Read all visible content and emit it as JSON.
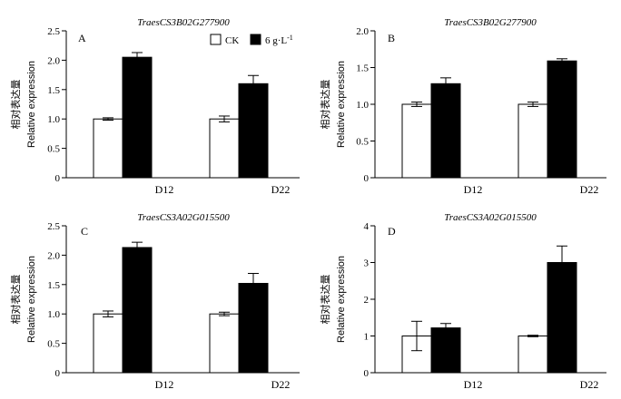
{
  "figure": {
    "ylabel_cn": "相对表达量",
    "ylabel_en": "Relative expression",
    "legend": {
      "ck": "CK",
      "treat_base": "6 g·L",
      "treat_sup": "-1"
    },
    "colors": {
      "ck": "#ffffff",
      "treat": "#000000",
      "axis": "#000000"
    }
  },
  "chart_data": [
    {
      "type": "bar",
      "panel": "A",
      "title": "TraesCS3B02G277900",
      "categories": [
        "D12",
        "D22"
      ],
      "ylim": [
        0,
        2.5
      ],
      "yticks": [
        "0",
        "0.5",
        "1.0",
        "1.5",
        "2.0",
        "2.5"
      ],
      "series": [
        {
          "name": "CK",
          "values": [
            1.0,
            1.0
          ],
          "errors": [
            0.02,
            0.05
          ]
        },
        {
          "name": "6 g·L-1",
          "values": [
            2.05,
            1.6
          ],
          "errors": [
            0.08,
            0.14
          ]
        }
      ],
      "legend": true
    },
    {
      "type": "bar",
      "panel": "B",
      "title": "TraesCS3B02G277900",
      "categories": [
        "D12",
        "D22"
      ],
      "ylim": [
        0,
        2.0
      ],
      "yticks": [
        "0",
        "0.5",
        "1.0",
        "1.5",
        "2.0"
      ],
      "series": [
        {
          "name": "CK",
          "values": [
            1.0,
            1.0
          ],
          "errors": [
            0.03,
            0.03
          ]
        },
        {
          "name": "6 g·L-1",
          "values": [
            1.28,
            1.59
          ],
          "errors": [
            0.08,
            0.03
          ]
        }
      ],
      "legend": false
    },
    {
      "type": "bar",
      "panel": "C",
      "title": "TraesCS3A02G015500",
      "categories": [
        "D12",
        "D22"
      ],
      "ylim": [
        0,
        2.5
      ],
      "yticks": [
        "0",
        "0.5",
        "1.0",
        "1.5",
        "2.0",
        "2.5"
      ],
      "series": [
        {
          "name": "CK",
          "values": [
            1.0,
            1.0
          ],
          "errors": [
            0.05,
            0.03
          ]
        },
        {
          "name": "6 g·L-1",
          "values": [
            2.13,
            1.52
          ],
          "errors": [
            0.09,
            0.17
          ]
        }
      ],
      "legend": false
    },
    {
      "type": "bar",
      "panel": "D",
      "title": "TraesCS3A02G015500",
      "categories": [
        "D12",
        "D22"
      ],
      "ylim": [
        0,
        4
      ],
      "yticks": [
        "0",
        "1",
        "2",
        "3",
        "4"
      ],
      "series": [
        {
          "name": "CK",
          "values": [
            1.0,
            1.0
          ],
          "errors": [
            0.4,
            0.02
          ]
        },
        {
          "name": "6 g·L-1",
          "values": [
            1.22,
            3.0
          ],
          "errors": [
            0.12,
            0.45
          ]
        }
      ],
      "legend": false
    }
  ]
}
